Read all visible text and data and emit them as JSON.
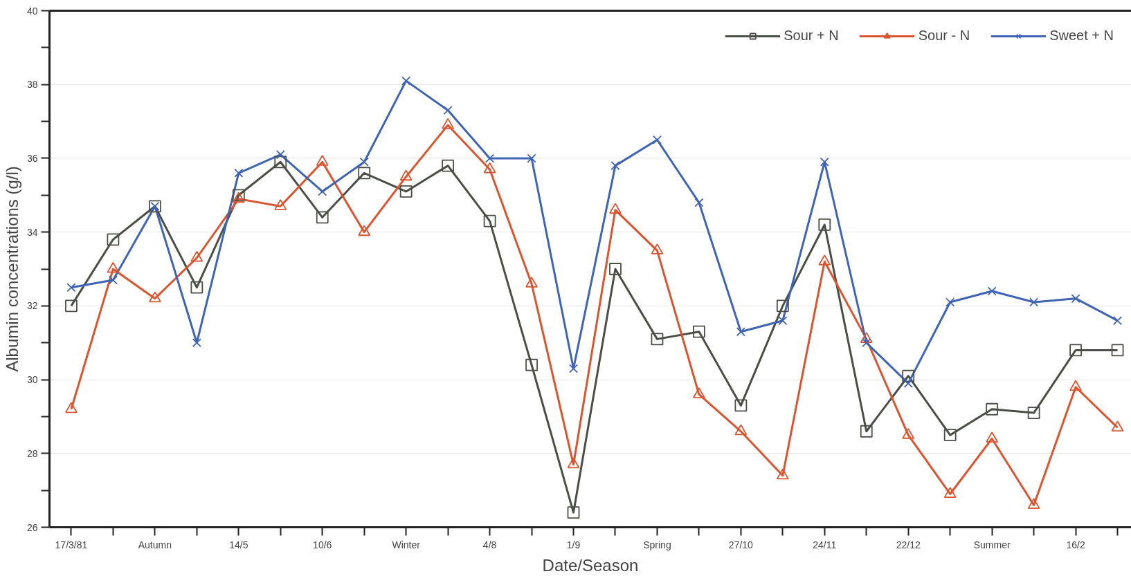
{
  "chart_data": {
    "type": "line",
    "xlabel": "Date/Season",
    "ylabel": "Albumin concentrations (g/l)",
    "categories": [
      "17/3/81",
      null,
      "Autumn",
      null,
      "14/5",
      null,
      "10/6",
      null,
      "Winter",
      null,
      "4/8",
      null,
      "1/9",
      null,
      "Spring",
      null,
      "27/10",
      null,
      "24/11",
      null,
      "22/12",
      null,
      "Summer",
      null,
      "16/2",
      null
    ],
    "series": [
      {
        "name": "Sour + N",
        "color": "#4a4f45",
        "marker": "square",
        "values": [
          32.0,
          33.8,
          34.7,
          32.5,
          35.0,
          35.9,
          34.4,
          35.6,
          35.1,
          35.8,
          34.3,
          30.4,
          26.4,
          33.0,
          31.1,
          31.3,
          29.3,
          32.0,
          34.2,
          28.6,
          30.1,
          28.5,
          29.2,
          29.1,
          30.8,
          30.8
        ]
      },
      {
        "name": "Sour - N",
        "color": "#d9542f",
        "marker": "triangle",
        "values": [
          29.2,
          33.0,
          32.2,
          33.3,
          34.9,
          34.7,
          35.9,
          34.0,
          35.5,
          36.9,
          35.7,
          32.6,
          27.7,
          34.6,
          33.5,
          29.6,
          28.6,
          27.4,
          33.2,
          31.1,
          28.5,
          26.9,
          28.4,
          26.6,
          29.8,
          28.7
        ]
      },
      {
        "name": "Sweet + N",
        "color": "#3f64b5",
        "marker": "cross",
        "values": [
          32.5,
          32.7,
          34.7,
          31.0,
          35.6,
          36.1,
          35.1,
          35.9,
          38.1,
          37.3,
          36.0,
          36.0,
          30.3,
          35.8,
          36.5,
          34.8,
          31.3,
          31.6,
          35.9,
          31.0,
          29.9,
          32.1,
          32.4,
          32.1,
          32.2,
          31.6
        ]
      }
    ],
    "ylim": [
      26,
      40
    ],
    "yticks": [
      26,
      {
        "value": 27,
        "label": null
      },
      28,
      {
        "value": 29,
        "label": null
      },
      30,
      {
        "value": 31,
        "label": null
      },
      32,
      {
        "value": 33,
        "label": null
      },
      34,
      {
        "value": 35,
        "label": null
      },
      36,
      {
        "value": 37,
        "label": null
      },
      38,
      {
        "value": 39,
        "label": null
      },
      40
    ],
    "grid": "y",
    "legend": "top right",
    "line_style": "solid"
  }
}
